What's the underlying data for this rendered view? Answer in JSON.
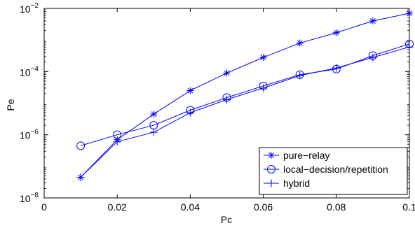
{
  "chart_data": {
    "type": "line",
    "xlabel": "Pc",
    "ylabel": "Pe",
    "xlim": [
      0,
      0.1
    ],
    "ylim": [
      1e-08,
      0.01
    ],
    "yscale": "log",
    "grid": false,
    "legend_position": "bottom-right",
    "x_ticks": [
      {
        "value": 0,
        "label": "0"
      },
      {
        "value": 0.02,
        "label": "0.02"
      },
      {
        "value": 0.04,
        "label": "0.04"
      },
      {
        "value": 0.06,
        "label": "0.06"
      },
      {
        "value": 0.08,
        "label": "0.08"
      },
      {
        "value": 0.1,
        "label": "0.1"
      }
    ],
    "y_ticks": [
      {
        "value": 1e-08,
        "base": "10",
        "exp": "−8"
      },
      {
        "value": 1e-06,
        "base": "10",
        "exp": "−6"
      },
      {
        "value": 0.0001,
        "base": "10",
        "exp": "−4"
      },
      {
        "value": 0.01,
        "base": "10",
        "exp": "−2"
      }
    ],
    "color": "#0000ff",
    "series": [
      {
        "name": "pure−relay",
        "marker": "asterisk",
        "x": [
          0.01,
          0.02,
          0.03,
          0.04,
          0.05,
          0.06,
          0.07,
          0.08,
          0.09,
          0.1
        ],
        "y": [
          4.5e-08,
          7e-07,
          4.5e-06,
          2.5e-05,
          9e-05,
          0.00028,
          0.0008,
          0.0017,
          0.004,
          0.007
        ]
      },
      {
        "name": "local−decision/repetition",
        "marker": "circle",
        "x": [
          0.01,
          0.02,
          0.03,
          0.04,
          0.05,
          0.06,
          0.07,
          0.08,
          0.09,
          0.1
        ],
        "y": [
          4.5e-07,
          1e-06,
          2e-06,
          6e-06,
          1.5e-05,
          3.5e-05,
          8e-05,
          0.00012,
          0.00032,
          0.00075
        ]
      },
      {
        "name": "hybrid",
        "marker": "plus",
        "x": [
          0.01,
          0.02,
          0.03,
          0.04,
          0.05,
          0.06,
          0.07,
          0.08,
          0.09,
          0.1
        ],
        "y": [
          4.5e-08,
          6e-07,
          1.2e-06,
          5e-06,
          1.3e-05,
          3e-05,
          7.5e-05,
          0.00013,
          0.00028,
          0.0006
        ]
      }
    ]
  }
}
